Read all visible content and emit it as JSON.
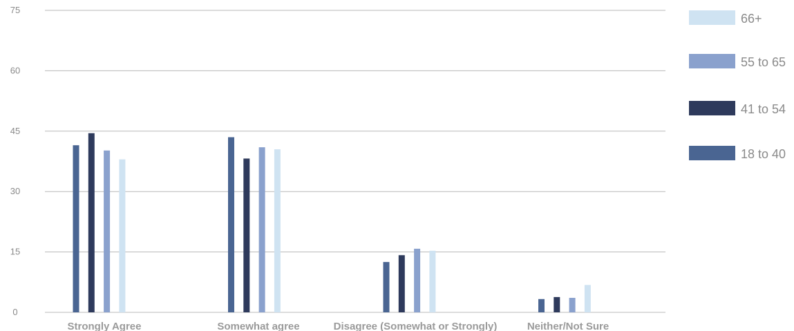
{
  "chart_data": {
    "type": "bar",
    "categories": [
      "Strongly Agree",
      "Somewhat agree",
      "Disagree (Somewhat or Strongly)",
      "Neither/Not Sure"
    ],
    "series": [
      {
        "name": "18 to 40",
        "color": "#4a6592",
        "values": [
          41.5,
          43.5,
          12.5,
          3.3
        ]
      },
      {
        "name": "41 to 54",
        "color": "#2e3a5c",
        "values": [
          44.5,
          38.2,
          14.2,
          3.8
        ]
      },
      {
        "name": "55 to 65",
        "color": "#8aa1cd",
        "values": [
          40.2,
          41.0,
          15.8,
          3.6
        ]
      },
      {
        "name": "66+",
        "color": "#cfe3f2",
        "values": [
          38.0,
          40.5,
          15.3,
          6.8
        ]
      }
    ],
    "legend_order": [
      "66+",
      "55 to 65",
      "41 to 54",
      "18 to 40"
    ],
    "y_ticks": [
      0,
      15,
      30,
      45,
      60,
      75
    ],
    "ylim": [
      0,
      75
    ],
    "grid": true,
    "legend_position": "right"
  }
}
